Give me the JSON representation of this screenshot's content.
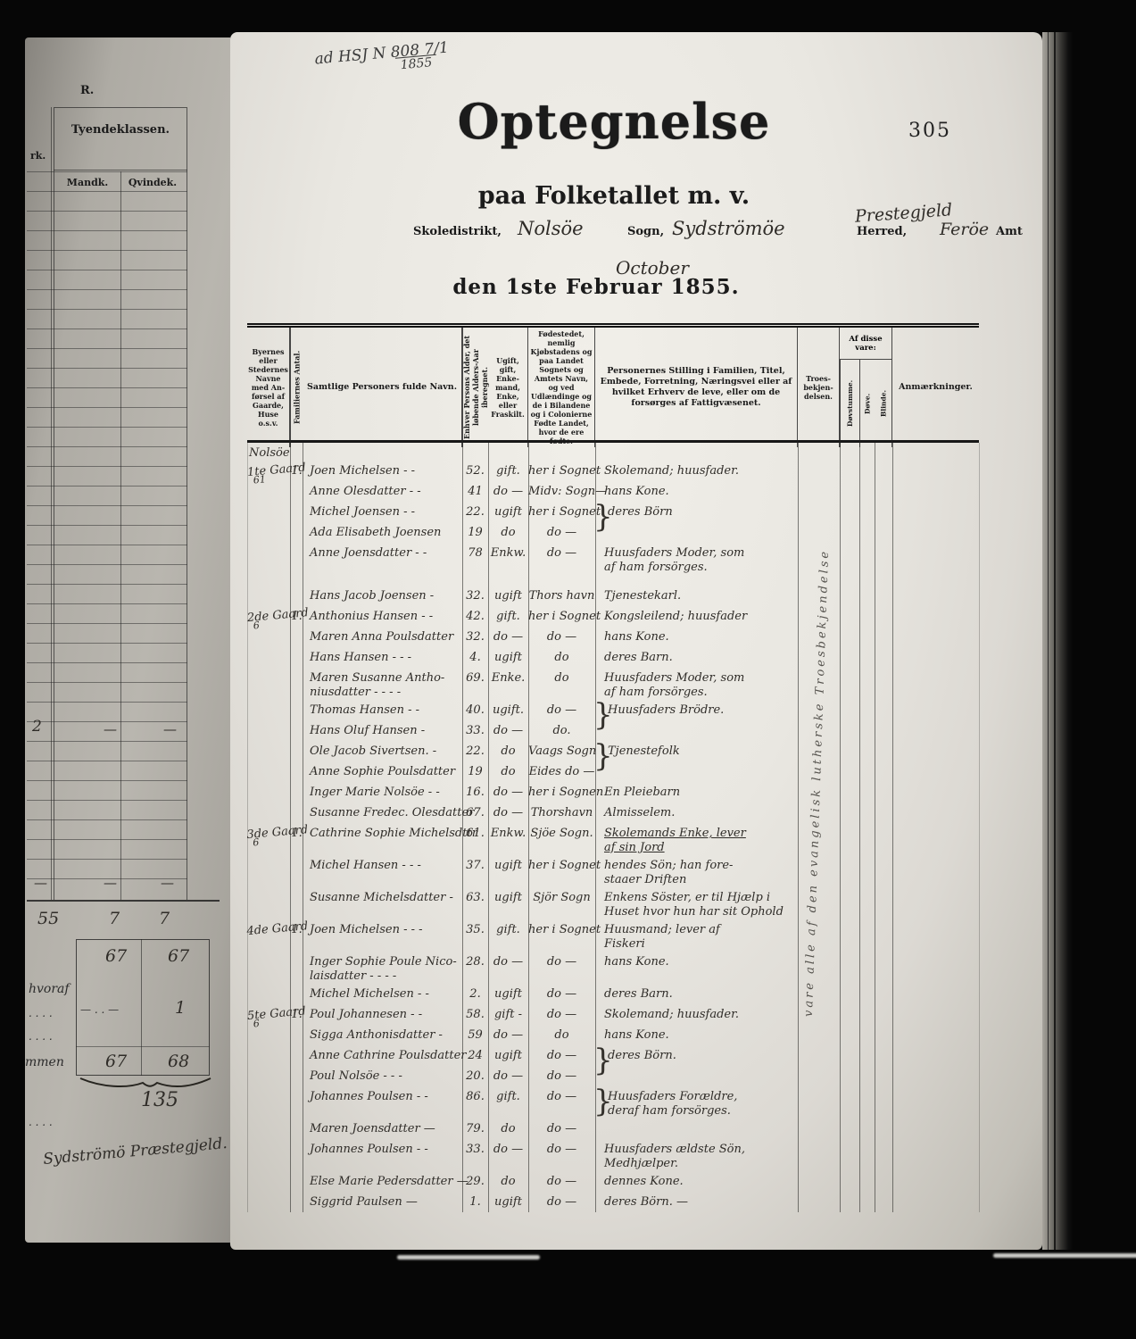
{
  "palette": {
    "film": "#060606",
    "paper": "#e9e7e1",
    "left_paper": "#aeaba4",
    "ink_print": "#1b1b1b",
    "ink_hand": "#2f2c28"
  },
  "film": {
    "archive_note": "ad HSJ N 808 7/1",
    "archive_note_year": "1855"
  },
  "left_page": {
    "corner_label": "R.",
    "partial_col_header": "rk.",
    "class_header": "Tyendeklassen.",
    "col1": "Mandk.",
    "col2": "Qvindek.",
    "row2": {
      "label": "2",
      "v1": "—",
      "v2": "—"
    },
    "tilde_row": {
      "t1": "—",
      "t2": "—",
      "t3": "—"
    },
    "sum1": {
      "label": "55",
      "v1": "7",
      "v2": "7"
    },
    "sum2": {
      "v1": "67",
      "v2": "67"
    },
    "hvoraf_label": "hvoraf",
    "hvoraf_dashes": "—  .  .  —",
    "hvoraf_v2": "1",
    "dots1": ". . . .",
    "dots2": ". . . .",
    "dots3": ". . . .",
    "total": {
      "label": "mmen",
      "v1": "67",
      "v2": "68"
    },
    "grand_total": "135",
    "signature": "Sydströmö Præstegjeld."
  },
  "main_page": {
    "page_number": "305",
    "title": "Optegnelse",
    "subtitle": "paa Folketallet m. v.",
    "form": {
      "skoledistrikt_label": "Skoledistrikt,",
      "sogn_value": "Nolsöe",
      "sogn_label": "Sogn,",
      "herred_value": "Sydströmöe",
      "herred_label": "Herred,",
      "prestegjeld_note": "Prestegjeld",
      "amt_value": "Feröe",
      "amt_label": "Amt",
      "month_note": "October",
      "date_line": "den 1ste Februar 1855."
    },
    "table": {
      "headers": {
        "c1": "Byernes eller Stedernes Navne med An­førsel af Gaarde, Huse o.s.v.",
        "c2": "Familiernes Antal.",
        "c3": "Samtlige Personers fulde Navn.",
        "c4": "Enhver Persons Alder, det løbende Alders-Aar iberegnet.",
        "c5": "Ugift, gift, Enke­mand, Enke, eller Fraskilt.",
        "c6": "Fødestedet, nemlig Kjøbstadens og paa Landet Sognets og Amtets Navn, og ved Udlændinge og de i Bilandene og i Colonierne Fødte Landet, hvor de ere fødte.",
        "c7": "Personernes Stilling i Familien, Titel, Embede, Forretning, Næringsvei eller af hvilket Erhverv de leve, eller om de forsørges af Fattigvæsenet.",
        "c8": "Troes­bekjen­delsen.",
        "c9_group": "Af disse vare:",
        "c9": "Døvstumme.",
        "c10": "Døve.",
        "c11": "Blinde.",
        "c12": "Anmærkninger."
      },
      "vertical_note": "vare alle af den evangelisk lutherske Troesbekjendelse",
      "rows": [
        {
          "type": "place",
          "place": "Nolsöe"
        },
        {
          "g": "1te Gaard",
          "gs": "61",
          "a": "1.",
          "n": [
            "Joen Michelsen -  -"
          ],
          "age": "52.",
          "st": "gift.",
          "bp": "her i Sognet",
          "pos": [
            "Skolemand; huusfader."
          ]
        },
        {
          "n": [
            "Anne Olesdatter -  -"
          ],
          "age": "41",
          "st": "do —",
          "bp": "Midv: Sogn—",
          "pos": [
            "hans Kone."
          ]
        },
        {
          "n": [
            "Michel Joensen -  -"
          ],
          "age": "22.",
          "st": "ugift",
          "bp": "her i Sognet.",
          "pos": [
            "deres Börn"
          ],
          "brace": true
        },
        {
          "n": [
            "Ada Elisabeth Joensen"
          ],
          "age": "19",
          "st": "do",
          "bp": "do —",
          "pos": []
        },
        {
          "n": [
            "Anne Joensdatter -  -"
          ],
          "age": "78",
          "st": "Enkw.",
          "bp": "do —",
          "pos": [
            "Huusfaders Moder, som",
            "af ham forsörges."
          ]
        },
        {
          "type": "spacer"
        },
        {
          "n": [
            "Hans Jacob Joensen -"
          ],
          "age": "32.",
          "st": "ugift",
          "bp": "Thors havn",
          "pos": [
            "Tjenestekarl."
          ]
        },
        {
          "g": "2de Gaard",
          "gs": "6",
          "a": "1.",
          "n": [
            "Anthonius Hansen -  -"
          ],
          "age": "42.",
          "st": "gift.",
          "bp": "her i Sognet",
          "pos": [
            "Kongsleilend; huusfader"
          ]
        },
        {
          "n": [
            "Maren Anna Poulsdatter"
          ],
          "age": "32.",
          "st": "do —",
          "bp": "do —",
          "pos": [
            "hans Kone."
          ]
        },
        {
          "n": [
            "Hans Hansen -  -  -"
          ],
          "age": "4.",
          "st": "ugift",
          "bp": "do",
          "pos": [
            "deres Barn."
          ]
        },
        {
          "n": [
            "Maren Susanne Antho-",
            "niusdatter  -  -  -  -"
          ],
          "age": "69.",
          "st": "Enke.",
          "bp": "do",
          "pos": [
            "Huusfaders Moder, som",
            "af ham forsörges."
          ]
        },
        {
          "n": [
            "Thomas Hansen -  -"
          ],
          "age": "40.",
          "st": "ugift.",
          "bp": "do —",
          "pos": [
            "Huusfaders Brödre."
          ],
          "brace": true
        },
        {
          "n": [
            "Hans Oluf Hansen -"
          ],
          "age": "33.",
          "st": "do —",
          "bp": "do.",
          "pos": []
        },
        {
          "n": [
            "Ole Jacob Sivertsen.  -"
          ],
          "age": "22.",
          "st": "do",
          "bp": "Vaags Sogn",
          "pos": [
            "Tjenestefolk"
          ],
          "brace": true
        },
        {
          "n": [
            "Anne Sophie Poulsdatter"
          ],
          "age": "19",
          "st": "do",
          "bp": "Eides do —",
          "pos": []
        },
        {
          "n": [
            "Inger Marie Nolsöe -  -"
          ],
          "age": "16.",
          "st": "do —",
          "bp": "her i Sognen",
          "pos": [
            "En Pleiebarn"
          ]
        },
        {
          "n": [
            "Susanne Fredec. Olesdatter"
          ],
          "age": "67.",
          "st": "do —",
          "bp": "Thorshavn",
          "pos": [
            "Almisselem."
          ]
        },
        {
          "g": "3de Gaard",
          "gs": "6",
          "a": "1.",
          "n": [
            "Cathrine Sophie Michelsdttr"
          ],
          "age": "61.",
          "st": "Enkw.",
          "bp": "Sjöe Sogn.",
          "pos": [
            "Skolemands Enke, lever",
            "af sin Jord"
          ],
          "ul": true
        },
        {
          "n": [
            "Michel Hansen -  -  -"
          ],
          "age": "37.",
          "st": "ugift",
          "bp": "her i Sognet",
          "pos": [
            "hendes Sön; han fore-",
            "staaer Driften"
          ]
        },
        {
          "n": [
            "Susanne Michelsdatter -"
          ],
          "age": "63.",
          "st": "ugift",
          "bp": "Sjör Sogn",
          "pos": [
            "Enkens Söster, er til Hjælp i",
            "Huset hvor hun har sit Ophold"
          ]
        },
        {
          "g": "4de Gaard",
          "a": "1.",
          "n": [
            "Joen Michelsen -  -  -"
          ],
          "age": "35.",
          "st": "gift.",
          "bp": "her i Sognet",
          "pos": [
            "Huusmand; lever af",
            "Fiskeri"
          ]
        },
        {
          "n": [
            "Inger Sophie Poule Nico-",
            "laisdatter  -  -  -  -"
          ],
          "age": "28.",
          "st": "do —",
          "bp": "do —",
          "pos": [
            "hans Kone."
          ]
        },
        {
          "n": [
            "Michel Michelsen -  -"
          ],
          "age": "2.",
          "st": "ugift",
          "bp": "do —",
          "pos": [
            "deres Barn."
          ]
        },
        {
          "g": "5te Gaard",
          "gs": "6",
          "a": "1.",
          "n": [
            "Poul Johannesen -  -"
          ],
          "age": "58.",
          "st": "gift -",
          "bp": "do —",
          "pos": [
            "Skolemand; huusfader."
          ]
        },
        {
          "n": [
            "Sigga Anthonisdatter -"
          ],
          "age": "59",
          "st": "do —",
          "bp": "do",
          "pos": [
            "hans Kone."
          ]
        },
        {
          "n": [
            "Anne Cathrine Poulsdatter"
          ],
          "age": "24",
          "st": "ugift",
          "bp": "do —",
          "pos": [
            "deres Börn."
          ],
          "brace": true
        },
        {
          "n": [
            "Poul Nolsöe -  -  -"
          ],
          "age": "20.",
          "st": "do —",
          "bp": "do —",
          "pos": []
        },
        {
          "n": [
            "Johannes Poulsen -  -"
          ],
          "age": "86.",
          "st": "gift.",
          "bp": "do —",
          "pos": [
            "Huusfaders Forældre,",
            "deraf ham forsörges."
          ],
          "brace": true
        },
        {
          "n": [
            "Maren Joensdatter —"
          ],
          "age": "79.",
          "st": "do",
          "bp": "do —",
          "pos": []
        },
        {
          "n": [
            "Johannes Poulsen -  -"
          ],
          "age": "33.",
          "st": "do —",
          "bp": "do —",
          "pos": [
            "Huusfaders ældste Sön,",
            "Medhjælper."
          ]
        },
        {
          "n": [
            "Else Marie Pedersdatter —"
          ],
          "age": "29.",
          "st": "do",
          "bp": "do —",
          "pos": [
            "dennes Kone."
          ]
        },
        {
          "n": [
            "Siggrid Paulsen —"
          ],
          "age": "1.",
          "st": "ugift",
          "bp": "do —",
          "pos": [
            "deres Börn. —"
          ]
        }
      ]
    }
  }
}
